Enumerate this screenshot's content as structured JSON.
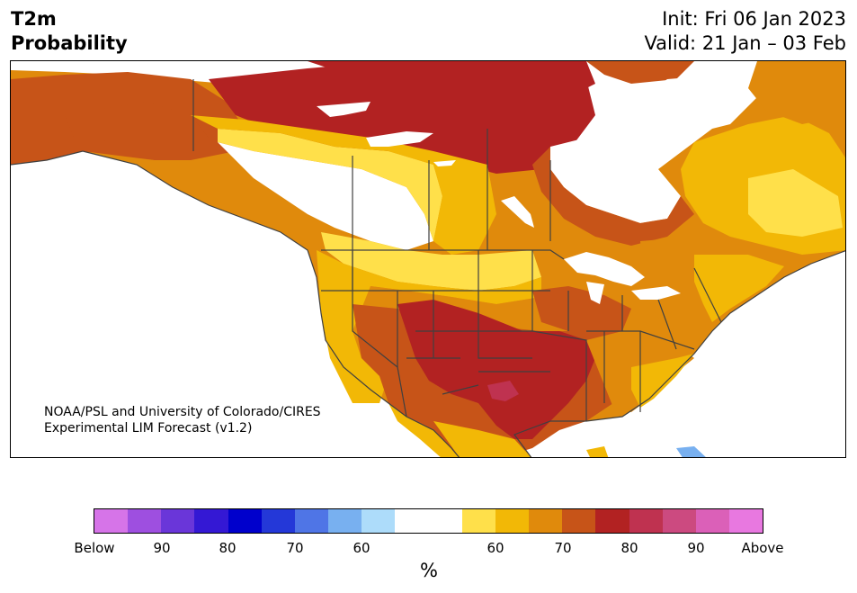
{
  "header": {
    "title_line1": "T2m",
    "title_line2": "Probability",
    "init": "Init: Fri 06 Jan 2023",
    "valid": "Valid: 21 Jan – 03 Feb"
  },
  "credit": {
    "line1": "NOAA/PSL and University of Colorado/CIRES",
    "line2": "Experimental LIM Forecast (v1.2)"
  },
  "colorbar": {
    "colors": [
      "#d674e8",
      "#9e4fe0",
      "#6a36d9",
      "#3418d4",
      "#0000cc",
      "#2438d8",
      "#4f75e6",
      "#78b0f0",
      "#addcfa",
      "#ffffff",
      "#ffffff",
      "#ffe04a",
      "#f2b806",
      "#e08a0c",
      "#c75418",
      "#b22222",
      "#bf3250",
      "#cc4a80",
      "#db60b8",
      "#e878e0"
    ],
    "labels": [
      "Below",
      "90",
      "80",
      "70",
      "60",
      "60",
      "70",
      "80",
      "90",
      "Above"
    ],
    "unit": "%"
  },
  "map": {
    "category_colors": {
      "white": "#ffffff",
      "yellow_light": "#ffe04a",
      "yellow": "#f2b806",
      "orange": "#e08a0c",
      "orange_dark": "#c75418",
      "red": "#b22222",
      "pink_red": "#bf3250",
      "light_blue": "#78b0f0"
    }
  }
}
